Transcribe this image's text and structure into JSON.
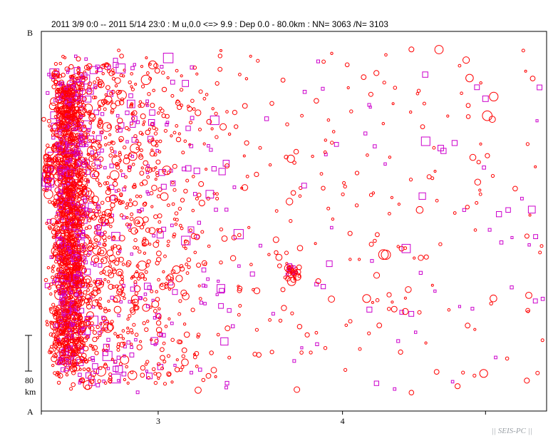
{
  "title": "2011 3/9 0:0 -- 2011 5/14 23:0  : M u,0.0 <=> 9.9   :  Dep 0.0 - 80.0km :  NN= 3063 /N= 3103",
  "credit": "|| SEIS-PC ||",
  "colors": {
    "background": "#ffffff",
    "frame": "#000000",
    "circle_marker": "#ff0000",
    "square_marker": "#cc00cc"
  },
  "chart_data": {
    "type": "scatter",
    "title": "2011 3/9 0:0 -- 2011 5/14 23:0  : M u,0.0 <=> 9.9   :  Dep 0.0 - 80.0km :  NN= 3063 /N= 3103",
    "x_axis": {
      "scale": "log",
      "xlim": [
        2.5,
        5.5
      ],
      "major_ticks": [
        3,
        4
      ],
      "tick_labels": [
        "3",
        "4"
      ],
      "minor_ticks": [
        2,
        3,
        4,
        5
      ]
    },
    "y_axis": {
      "top_label": "B",
      "bottom_label": "A",
      "scale_bar_value": "80",
      "scale_bar_unit": "km"
    },
    "grid": false,
    "legend": "none",
    "series": [
      {
        "marker": "circle",
        "color": "#ff0000"
      },
      {
        "marker": "square",
        "color": "#cc00cc"
      }
    ],
    "approx_total_events": 3063
  }
}
